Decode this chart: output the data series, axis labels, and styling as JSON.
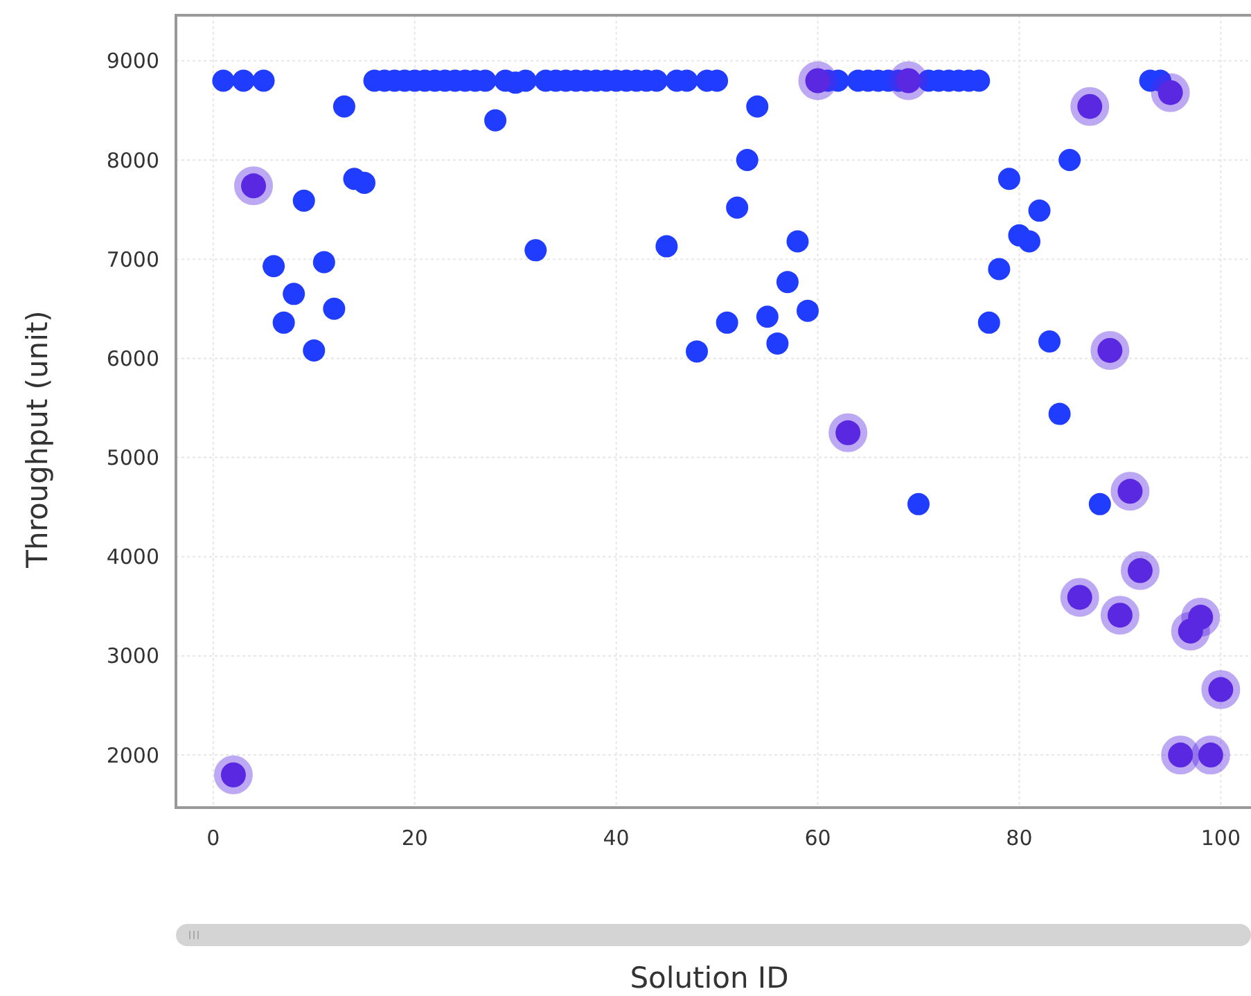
{
  "chart_data": {
    "type": "scatter",
    "xlabel": "Solution ID",
    "ylabel": "Throughput (unit)",
    "xlim": [
      -3.7,
      103
    ],
    "ylim": [
      1470,
      9460
    ],
    "xticks": [
      0,
      20,
      40,
      60,
      80,
      100
    ],
    "yticks": [
      2000,
      3000,
      4000,
      5000,
      6000,
      7000,
      8000,
      9000
    ],
    "grid": true,
    "marker": "circle",
    "series": [
      {
        "color": "#1f3cff",
        "x": [
          1,
          3,
          5,
          6,
          7,
          8,
          9,
          10,
          11,
          12,
          13,
          14,
          15,
          16,
          17,
          18,
          19,
          20,
          21,
          22,
          23,
          24,
          25,
          26,
          27,
          28,
          29,
          30,
          31,
          32,
          33,
          34,
          35,
          36,
          37,
          38,
          39,
          40,
          41,
          42,
          43,
          44,
          45,
          46,
          47,
          48,
          49,
          50,
          51,
          52,
          53,
          54,
          55,
          56,
          57,
          58,
          59,
          61,
          62,
          64,
          65,
          66,
          67,
          68,
          70,
          71,
          72,
          73,
          74,
          75,
          76,
          77,
          78,
          79,
          80,
          81,
          82,
          83,
          84,
          85,
          88,
          93,
          94
        ],
        "values": [
          8800,
          8800,
          8800,
          6930,
          6360,
          6650,
          7590,
          6080,
          6970,
          6500,
          8540,
          7810,
          7770,
          8800,
          8800,
          8800,
          8800,
          8800,
          8800,
          8800,
          8800,
          8800,
          8800,
          8800,
          8800,
          8400,
          8800,
          8780,
          8800,
          7090,
          8800,
          8800,
          8800,
          8800,
          8800,
          8800,
          8800,
          8800,
          8800,
          8800,
          8800,
          8800,
          7130,
          8800,
          8800,
          6070,
          8800,
          8800,
          6360,
          7520,
          8000,
          8540,
          6420,
          6150,
          6770,
          7180,
          6480,
          8800,
          8800,
          8800,
          8800,
          8800,
          8800,
          8800,
          4530,
          8800,
          8800,
          8800,
          8800,
          8800,
          8800,
          6360,
          6900,
          7810,
          7240,
          7180,
          7490,
          6170,
          5440,
          8000,
          4530,
          8800,
          8800
        ]
      },
      {
        "color": "#5a28e0",
        "x": [
          2,
          4,
          60,
          63,
          69,
          86,
          87,
          89,
          90,
          91,
          92,
          95,
          96,
          97,
          98,
          99,
          100
        ],
        "values": [
          1800,
          7740,
          8800,
          5250,
          8800,
          3590,
          8540,
          6080,
          3410,
          4660,
          3860,
          8680,
          2000,
          3250,
          3390,
          2000,
          2660
        ]
      }
    ]
  }
}
